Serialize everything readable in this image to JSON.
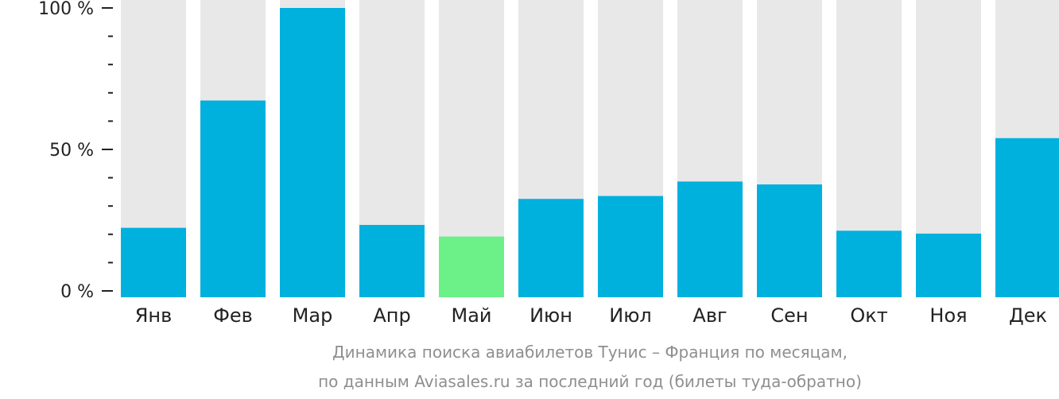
{
  "chart_data": {
    "type": "bar",
    "categories": [
      "Янв",
      "Фев",
      "Мар",
      "Апр",
      "Май",
      "Июн",
      "Июл",
      "Авг",
      "Сен",
      "Окт",
      "Ноя",
      "Дек"
    ],
    "values": [
      24,
      68,
      100,
      25,
      21,
      34,
      35,
      40,
      39,
      23,
      22,
      55
    ],
    "highlight_index": 4,
    "ylim": [
      0,
      100
    ],
    "yticks": [
      {
        "value": 0,
        "label": "0 %"
      },
      {
        "value": 50,
        "label": "50 %"
      },
      {
        "value": 100,
        "label": "100 %"
      }
    ],
    "minor_tick_step": 10,
    "caption_lines": [
      "Динамика поиска авиабилетов Тунис – Франция по месяцам,",
      "по данным Aviasales.ru за последний год (билеты туда-обратно)"
    ],
    "colors": {
      "bar": "#00b0dd",
      "highlight": "#6cf088",
      "background_bar": "#e8e8e8",
      "axis": "#222222",
      "caption": "#8f8f8f"
    }
  }
}
